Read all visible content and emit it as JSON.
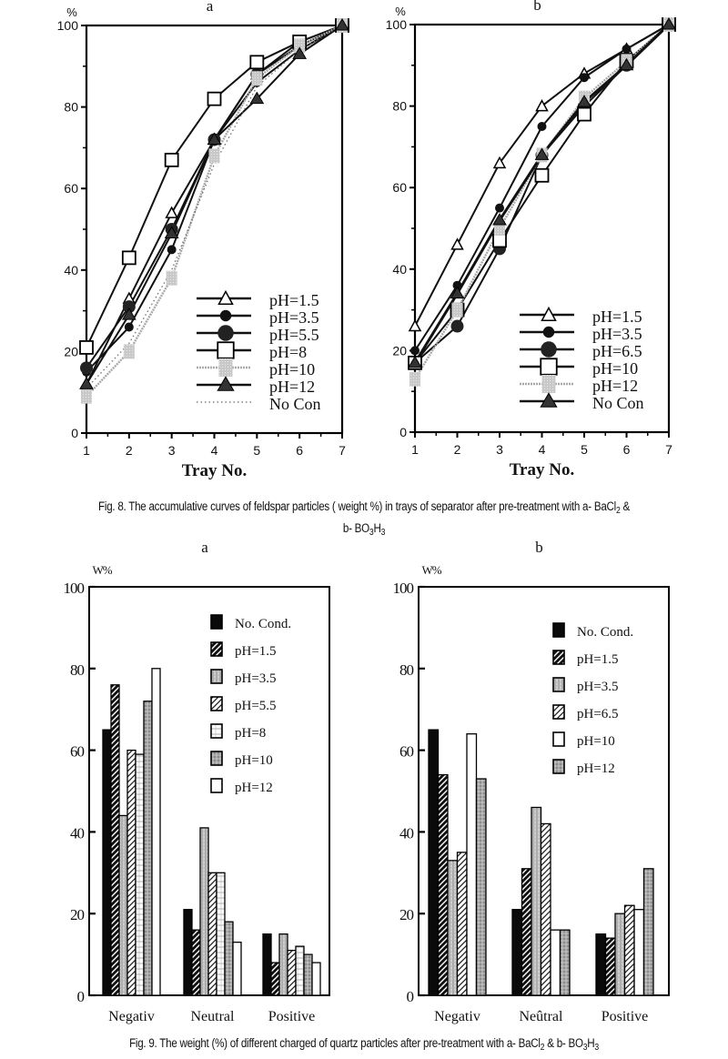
{
  "figure8": {
    "caption_prefix": "Fig. 8. The accumulative curves of feldspar particles ( weight %) in trays of separator after pre-treatment with a- BaCl",
    "caption_sub1": "2",
    "caption_mid": " &",
    "caption_line2_prefix": "b- BO",
    "caption_sub2": "3",
    "caption_line2_h": "H",
    "caption_sub3": "3"
  },
  "figure9": {
    "caption_prefix": "Fig. 9. The weight (%) of different charged of quartz particles after pre-treatment with a- BaCl",
    "caption_sub1": "2",
    "caption_mid": " & b- BO",
    "caption_sub2": "3",
    "caption_h": "H",
    "caption_sub3": "3"
  },
  "chart_data": [
    {
      "type": "line",
      "panel": "a",
      "title": "a",
      "ylabel": "%",
      "xlabel": "Tray No.",
      "x": [
        1,
        2,
        3,
        4,
        5,
        6,
        7
      ],
      "xticks": [
        "1",
        "2",
        "3",
        "4",
        "5",
        "6",
        "7"
      ],
      "yticks": [
        "0",
        "20",
        "40",
        "60",
        "80",
        "100"
      ],
      "ylim": [
        0,
        100
      ],
      "xlim": [
        1,
        7
      ],
      "legend_position": "bottom-right",
      "series": [
        {
          "name": "pH=1.5",
          "marker": "triangle-open",
          "line": "solid",
          "color": "#000000",
          "values": [
            12,
            33,
            54,
            72,
            88,
            96,
            100
          ]
        },
        {
          "name": "pH=3.5",
          "marker": "circle-small",
          "line": "solid",
          "color": "#000000",
          "values": [
            15,
            26,
            45,
            72,
            86,
            94,
            100
          ]
        },
        {
          "name": "pH=5.5",
          "marker": "circle-large",
          "line": "solid",
          "color": "#000000",
          "values": [
            16,
            31,
            50,
            72,
            88,
            95,
            100
          ]
        },
        {
          "name": "pH=8",
          "marker": "square-open",
          "line": "solid",
          "color": "#000000",
          "values": [
            21,
            43,
            67,
            82,
            91,
            96,
            100
          ]
        },
        {
          "name": "pH=10",
          "marker": "square-gray",
          "line": "gray",
          "color": "#9a9a9a",
          "values": [
            9,
            20,
            38,
            68,
            87,
            95,
            100
          ]
        },
        {
          "name": "pH=12",
          "marker": "triangle-filled",
          "line": "solid",
          "color": "#000000",
          "values": [
            12,
            29,
            49,
            72,
            82,
            93,
            100
          ]
        },
        {
          "name": "No Con",
          "marker": "none",
          "line": "dotted",
          "color": "#777777",
          "values": [
            11,
            22,
            40,
            66,
            85,
            94,
            100
          ]
        }
      ]
    },
    {
      "type": "line",
      "panel": "b",
      "title": "b",
      "ylabel": "%",
      "xlabel": "Tray No.",
      "x": [
        1,
        2,
        3,
        4,
        5,
        6,
        7
      ],
      "xticks": [
        "1",
        "2",
        "3",
        "4",
        "5",
        "6",
        "7"
      ],
      "yticks": [
        "0",
        "20",
        "40",
        "60",
        "80",
        "100"
      ],
      "ylim": [
        0,
        100
      ],
      "xlim": [
        1,
        7
      ],
      "legend_position": "bottom-right",
      "series": [
        {
          "name": "pH=1.5",
          "marker": "triangle-open",
          "line": "solid",
          "color": "#000000",
          "values": [
            26,
            46,
            66,
            80,
            88,
            94,
            100
          ]
        },
        {
          "name": "pH=3.5",
          "marker": "circle-small",
          "line": "solid",
          "color": "#000000",
          "values": [
            20,
            36,
            55,
            75,
            87,
            94,
            100
          ]
        },
        {
          "name": "pH=6.5",
          "marker": "circle-large",
          "line": "solid",
          "color": "#000000",
          "values": [
            17,
            26,
            45,
            68,
            80,
            90,
            100
          ]
        },
        {
          "name": "pH=10",
          "marker": "square-open",
          "line": "solid",
          "color": "#000000",
          "values": [
            17,
            30,
            47,
            63,
            78,
            91,
            100
          ]
        },
        {
          "name": "pH=12",
          "marker": "square-gray",
          "line": "gray",
          "color": "#9a9a9a",
          "values": [
            13,
            30,
            50,
            68,
            82,
            91,
            100
          ]
        },
        {
          "name": "No Con",
          "marker": "triangle-filled",
          "line": "thick",
          "color": "#000000",
          "values": [
            17,
            34,
            52,
            68,
            81,
            90,
            100
          ]
        }
      ]
    },
    {
      "type": "bar",
      "panel": "a",
      "title": "a",
      "ylabel": "W%",
      "xlabel": "",
      "categories": [
        "Negativ",
        "Neutral",
        "Positive"
      ],
      "yticks": [
        "0",
        "20",
        "40",
        "60",
        "80",
        "100"
      ],
      "ylim": [
        0,
        100
      ],
      "legend_position": "top-right",
      "series": [
        {
          "name": "No. Cond.",
          "pattern": "solid-black",
          "values": [
            65,
            21,
            15
          ]
        },
        {
          "name": "pH=1.5",
          "pattern": "diag-dark",
          "values": [
            76,
            16,
            8
          ]
        },
        {
          "name": "pH=3.5",
          "pattern": "vgrid-gray",
          "values": [
            44,
            41,
            15
          ]
        },
        {
          "name": "pH=5.5",
          "pattern": "diag-light",
          "values": [
            60,
            30,
            11
          ]
        },
        {
          "name": "pH=8",
          "pattern": "hlines",
          "values": [
            59,
            30,
            12
          ]
        },
        {
          "name": "pH=10",
          "pattern": "grid-dark",
          "values": [
            72,
            18,
            10
          ]
        },
        {
          "name": "pH=12",
          "pattern": "white",
          "values": [
            80,
            13,
            8
          ]
        }
      ]
    },
    {
      "type": "bar",
      "panel": "b",
      "title": "b",
      "ylabel": "W%",
      "xlabel": "",
      "categories": [
        "Negativ",
        "Neûtral",
        "Positive"
      ],
      "yticks": [
        "0",
        "20",
        "40",
        "60",
        "80",
        "100"
      ],
      "ylim": [
        0,
        100
      ],
      "legend_position": "top-right",
      "series": [
        {
          "name": "No. Cond.",
          "pattern": "solid-black",
          "values": [
            65,
            21,
            15
          ]
        },
        {
          "name": "pH=1.5",
          "pattern": "diag-dark",
          "values": [
            54,
            31,
            14
          ]
        },
        {
          "name": "pH=3.5",
          "pattern": "vgrid-gray",
          "values": [
            33,
            46,
            20
          ]
        },
        {
          "name": "pH=6.5",
          "pattern": "diag-light",
          "values": [
            35,
            42,
            22
          ]
        },
        {
          "name": "pH=10",
          "pattern": "white",
          "values": [
            64,
            16,
            21
          ]
        },
        {
          "name": "pH=12",
          "pattern": "grid-dark",
          "values": [
            53,
            16,
            31
          ]
        }
      ]
    }
  ]
}
